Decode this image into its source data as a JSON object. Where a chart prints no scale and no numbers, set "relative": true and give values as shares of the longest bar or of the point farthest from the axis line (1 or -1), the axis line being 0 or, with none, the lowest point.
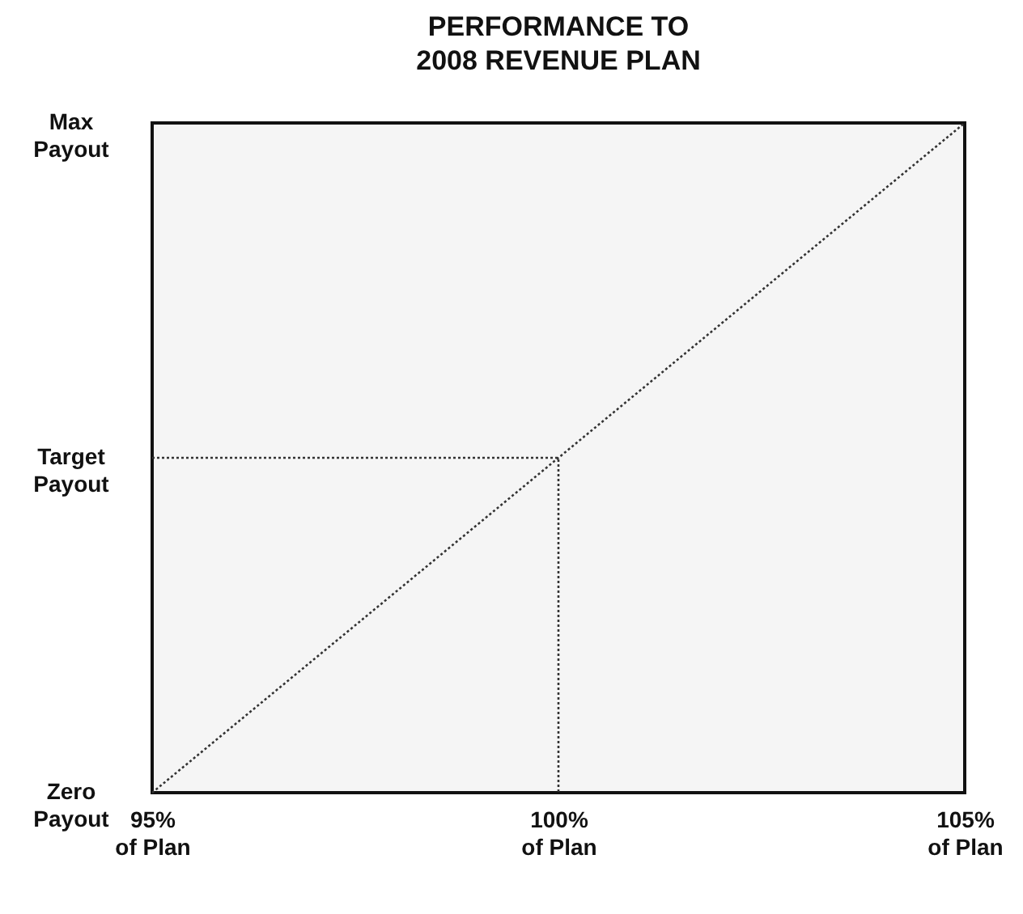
{
  "chart_data": {
    "type": "line",
    "title": "PERFORMANCE TO\n2008 REVENUE PLAN",
    "categories": [
      "95%\nof Plan",
      "100%\nof Plan",
      "105%\nof Plan"
    ],
    "relative": true,
    "line_style": "dotted",
    "annotations": [
      "Zero\nPayout",
      "Target\nPayout",
      "Max\nPayout"
    ],
    "series": [
      {
        "color": "#333333",
        "values": [
          0,
          0.5,
          1
        ]
      },
      {
        "color": "#333333",
        "x": [
          "95%\nof Plan",
          "100%\nof Plan",
          "100%\nof Plan"
        ],
        "values": [
          0.5,
          0.5,
          0
        ]
      }
    ]
  }
}
